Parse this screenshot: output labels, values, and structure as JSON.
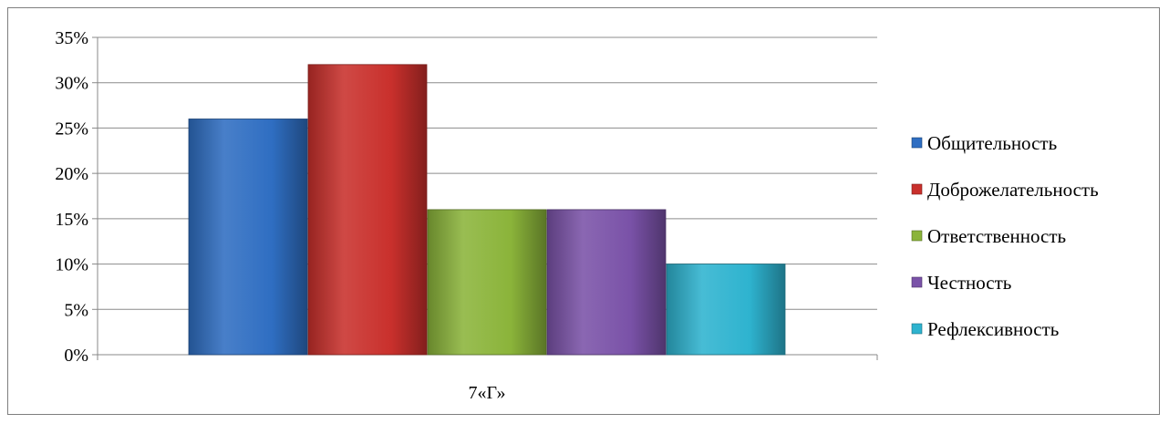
{
  "chart_data": {
    "type": "bar",
    "categories": [
      "7«Г»"
    ],
    "series": [
      {
        "name": "Общительность",
        "values": [
          26
        ],
        "color": "#2f6ec2"
      },
      {
        "name": "Доброжелательность",
        "values": [
          32
        ],
        "color": "#c9302c"
      },
      {
        "name": "Ответственность",
        "values": [
          16
        ],
        "color": "#8bb43a"
      },
      {
        "name": "Честность",
        "values": [
          16
        ],
        "color": "#7a52a8"
      },
      {
        "name": "Рефлексивность",
        "values": [
          10
        ],
        "color": "#2eb3cf"
      }
    ],
    "title": "",
    "xlabel": "",
    "ylabel": "",
    "ylim": [
      0,
      35
    ],
    "ytick_step": 5,
    "y_tick_labels": [
      "0%",
      "5%",
      "10%",
      "15%",
      "20%",
      "25%",
      "30%",
      "35%"
    ],
    "grid": true,
    "legend": "right"
  }
}
